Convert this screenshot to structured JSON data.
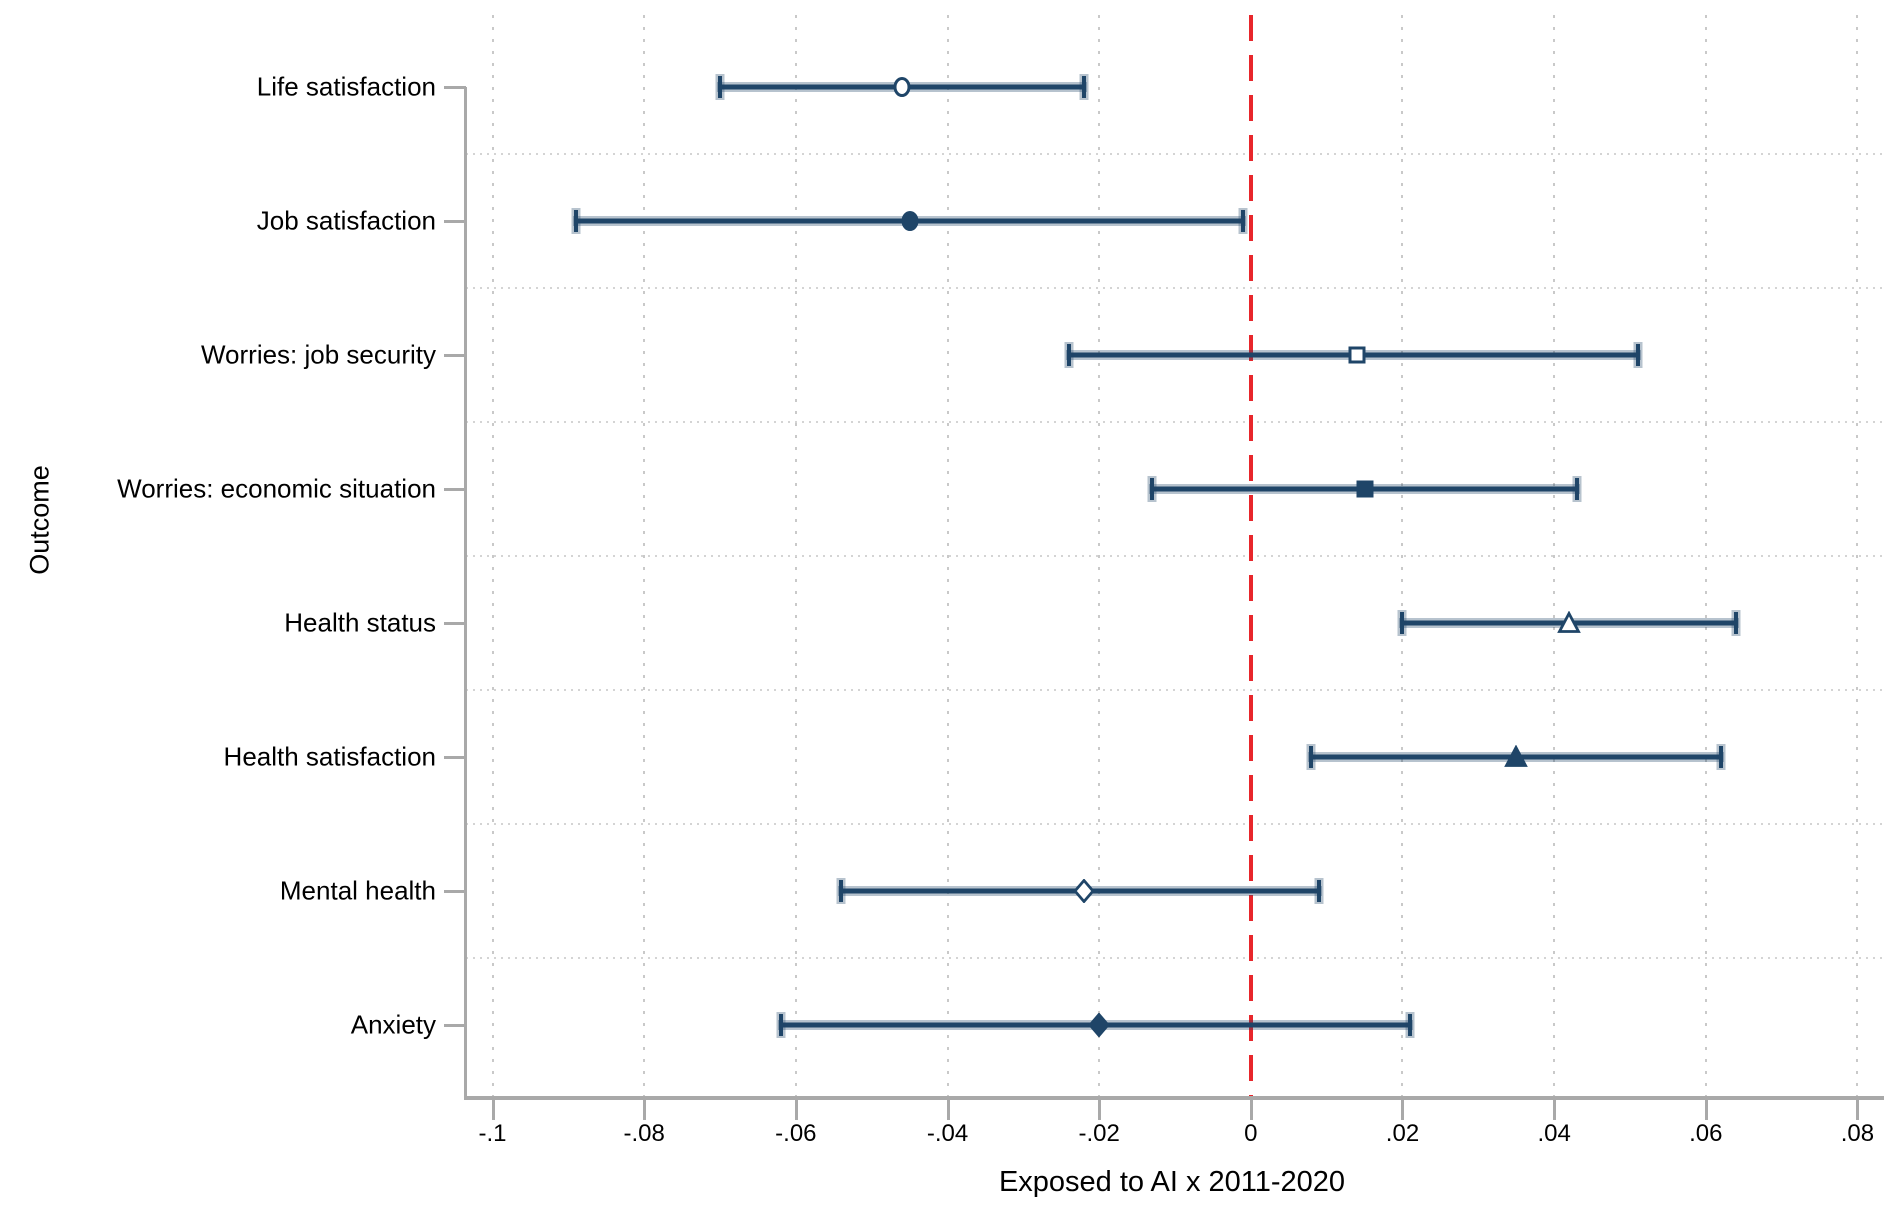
{
  "chart_data": {
    "type": "scatter",
    "subtype": "coefficient-forest-plot",
    "title": "",
    "xlabel": "Exposed to AI x 2011-2020",
    "ylabel": "Outcome",
    "xlim": [
      -0.1035,
      0.0835
    ],
    "x_ticks": [
      -0.1,
      -0.08,
      -0.06,
      -0.04,
      -0.02,
      0,
      0.02,
      0.04,
      0.06,
      0.08
    ],
    "x_tick_labels": [
      "-.1",
      "-.08",
      "-.06",
      "-.04",
      "-.02",
      "0",
      ".02",
      ".04",
      ".06",
      ".08"
    ],
    "grid": "dotted vertical gridlines at each x tick; fine dotted horizontal separators between categories",
    "zero_line": {
      "x": 0,
      "style": "dashed",
      "color": "#e8262b"
    },
    "legend_position": "none",
    "categories": [
      "Life satisfaction",
      "Job satisfaction",
      "Worries: job security",
      "Worries: economic situation",
      "Health status",
      "Health satisfaction",
      "Mental health",
      "Anxiety"
    ],
    "points": [
      {
        "label": "Life satisfaction",
        "estimate": -0.046,
        "ci_low": -0.07,
        "ci_high": -0.022,
        "marker": "circle",
        "fill": "hollow"
      },
      {
        "label": "Job satisfaction",
        "estimate": -0.045,
        "ci_low": -0.089,
        "ci_high": -0.001,
        "marker": "circle",
        "fill": "solid"
      },
      {
        "label": "Worries: job security",
        "estimate": 0.014,
        "ci_low": -0.024,
        "ci_high": 0.051,
        "marker": "square",
        "fill": "hollow"
      },
      {
        "label": "Worries: economic situation",
        "estimate": 0.015,
        "ci_low": -0.013,
        "ci_high": 0.043,
        "marker": "square",
        "fill": "solid"
      },
      {
        "label": "Health status",
        "estimate": 0.042,
        "ci_low": 0.02,
        "ci_high": 0.064,
        "marker": "triangle",
        "fill": "hollow"
      },
      {
        "label": "Health satisfaction",
        "estimate": 0.035,
        "ci_low": 0.008,
        "ci_high": 0.062,
        "marker": "triangle",
        "fill": "solid"
      },
      {
        "label": "Mental health",
        "estimate": -0.022,
        "ci_low": -0.054,
        "ci_high": 0.009,
        "marker": "diamond",
        "fill": "hollow"
      },
      {
        "label": "Anxiety",
        "estimate": -0.02,
        "ci_low": -0.062,
        "ci_high": 0.021,
        "marker": "diamond",
        "fill": "solid"
      }
    ],
    "colors": {
      "marker": "#1f4568",
      "ci_line": "#1f4568",
      "ci_halo": "rgba(31,69,104,0.32)",
      "zero_line": "#e8262b",
      "gridline": "#c9c9c9",
      "separator": "#d4d4d4",
      "axis": "#a9a9a9",
      "text": "#000000",
      "background": "#ffffff"
    }
  }
}
